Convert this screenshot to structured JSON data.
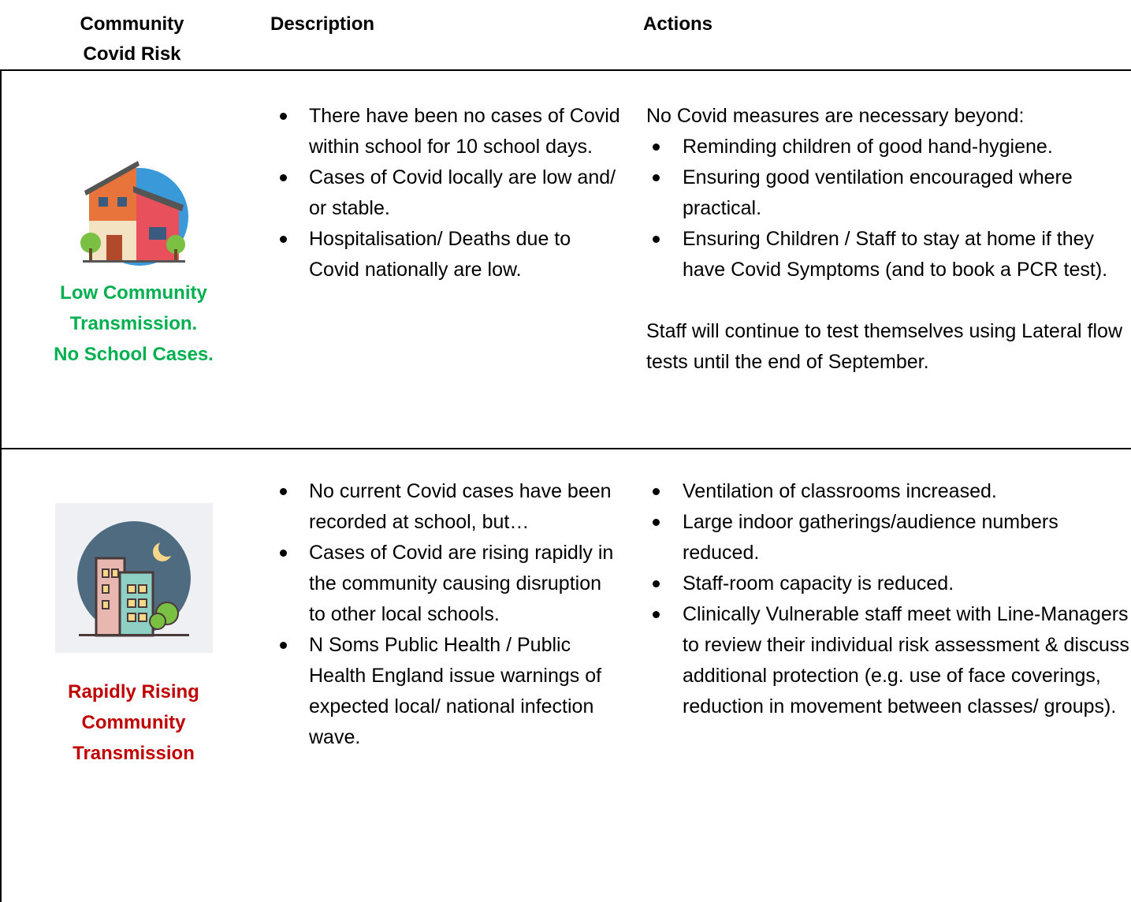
{
  "header": {
    "columns": [
      [
        "Community",
        "Covid Risk"
      ],
      "Description",
      "Actions"
    ]
  },
  "rows": [
    {
      "label": [
        "Low Community",
        "Transmission.",
        "No School Cases."
      ],
      "description": [
        "There have been no cases of Covid within school for 10 school days.",
        "Cases of Covid locally are low and/ or stable.",
        "Hospitalisation/ Deaths due to Covid nationally are low."
      ],
      "actions_intro": "No Covid measures are necessary beyond:",
      "actions": [
        "Reminding children of good hand-hygiene.",
        "Ensuring good ventilation encouraged where practical.",
        "Ensuring Children / Staff to stay at home if they have Covid Symptoms (and to book a PCR test)."
      ],
      "actions_note": "Staff will continue to test themselves using Lateral flow tests until the end of September."
    },
    {
      "label": [
        "Rapidly Rising",
        "Community",
        "Transmission"
      ],
      "description": [
        "No current Covid cases have been recorded at school, but…",
        "Cases of Covid are rising rapidly in the community causing disruption to other local schools.",
        "N Soms Public Health / Public Health England issue warnings of expected local/ national infection wave."
      ],
      "actions": [
        "Ventilation of classrooms increased.",
        "Large indoor gatherings/audience numbers reduced.",
        "Staff-room capacity is reduced.",
        "Clinically Vulnerable staff meet with Line-Managers to review their individual risk assessment & discuss additional protection (e.g. use of face coverings, reduction in movement between classes/ groups)."
      ]
    }
  ]
}
